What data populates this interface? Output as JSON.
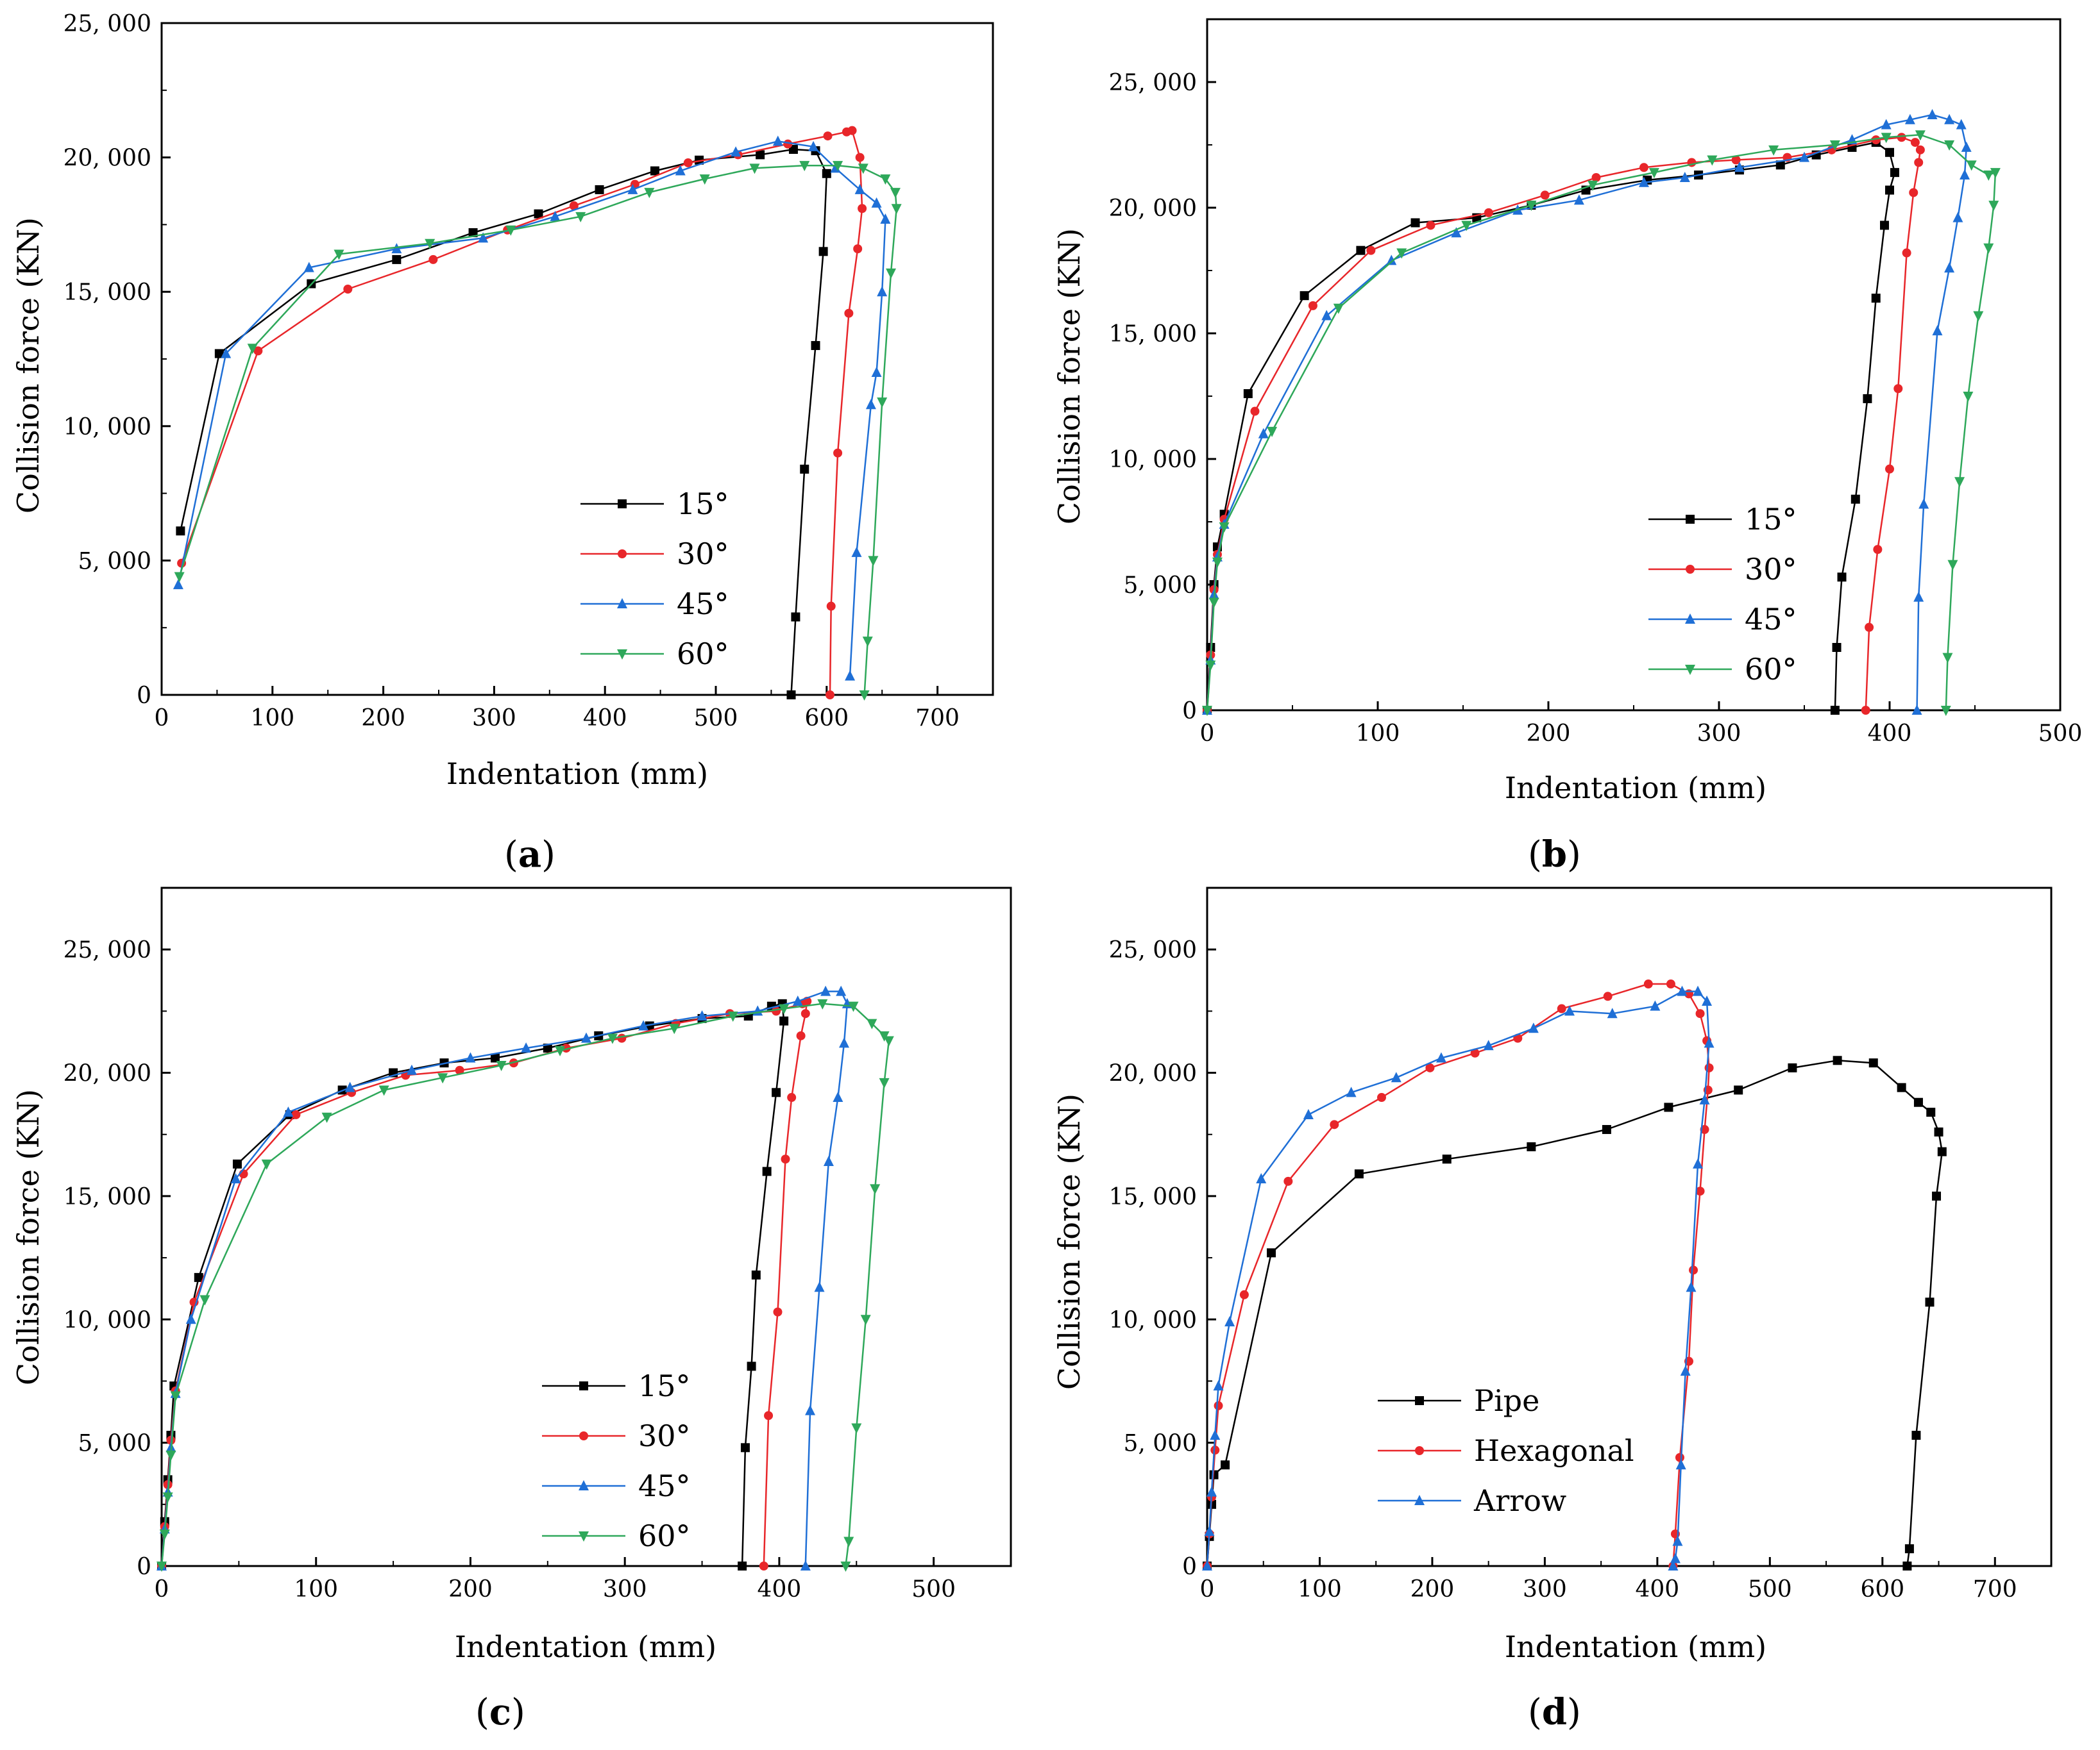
{
  "figure": {
    "panels": [
      "(a)",
      "(b)",
      "(c)",
      "(d)"
    ]
  },
  "colors": {
    "black": "#000000",
    "red": "#e8262a",
    "blue": "#1f6fd6",
    "green": "#2ea85a"
  },
  "chart_data": [
    {
      "type": "line",
      "panel_label": "a",
      "xlabel": "Indentation (mm)",
      "ylabel": "Collision force (KN)",
      "xlim": [
        0,
        750
      ],
      "ylim": [
        0,
        25000
      ],
      "xticks": [
        0,
        100,
        200,
        300,
        400,
        500,
        600,
        700
      ],
      "yticks": [
        0,
        5000,
        10000,
        15000,
        20000,
        25000
      ],
      "ytick_labels": [
        "0",
        "5, 000",
        "10, 000",
        "15, 000",
        "20, 000",
        "25, 000"
      ],
      "legend_position": "bottom-center",
      "series": [
        {
          "name": "15°",
          "color": "#000000",
          "marker": "square",
          "x": [
            17,
            52,
            135,
            212,
            281,
            340,
            395,
            445,
            485,
            540,
            570,
            590,
            600,
            597,
            590,
            580,
            572,
            568
          ],
          "y": [
            6100,
            12700,
            15300,
            16200,
            17200,
            17900,
            18800,
            19500,
            19900,
            20100,
            20300,
            20250,
            19400,
            16500,
            13000,
            8400,
            2900,
            0
          ]
        },
        {
          "name": "30°",
          "color": "#e8262a",
          "marker": "circle",
          "x": [
            18,
            87,
            168,
            245,
            312,
            372,
            427,
            475,
            520,
            565,
            601,
            618,
            623,
            630,
            632,
            628,
            620,
            610,
            604,
            603
          ],
          "y": [
            4900,
            12800,
            15100,
            16200,
            17300,
            18200,
            19000,
            19800,
            20100,
            20500,
            20800,
            20950,
            21000,
            20000,
            18100,
            16600,
            14200,
            9000,
            3300,
            0
          ]
        },
        {
          "name": "45°",
          "color": "#1f6fd6",
          "marker": "triangle-up",
          "x": [
            15,
            58,
            133,
            212,
            290,
            355,
            425,
            468,
            518,
            556,
            588,
            608,
            630,
            645,
            653,
            650,
            645,
            640,
            627,
            621
          ],
          "y": [
            4100,
            12700,
            15900,
            16600,
            17000,
            17800,
            18800,
            19500,
            20200,
            20600,
            20400,
            19600,
            18800,
            18300,
            17700,
            15000,
            12000,
            10800,
            5300,
            700
          ]
        },
        {
          "name": "60°",
          "color": "#2ea85a",
          "marker": "triangle-down",
          "x": [
            16,
            82,
            160,
            242,
            315,
            378,
            440,
            490,
            535,
            580,
            610,
            633,
            653,
            662,
            663,
            658,
            650,
            642,
            637,
            634
          ],
          "y": [
            4400,
            12900,
            16400,
            16800,
            17300,
            17800,
            18700,
            19200,
            19600,
            19700,
            19700,
            19600,
            19200,
            18700,
            18100,
            15700,
            10900,
            5000,
            2000,
            0
          ]
        }
      ]
    },
    {
      "type": "line",
      "panel_label": "b",
      "xlabel": "Indentation (mm)",
      "ylabel": "Collision force (KN)",
      "xlim": [
        0,
        500
      ],
      "ylim": [
        0,
        27500
      ],
      "xticks": [
        0,
        100,
        200,
        300,
        400,
        500
      ],
      "yticks": [
        0,
        5000,
        10000,
        15000,
        20000,
        25000
      ],
      "ytick_labels": [
        "0",
        "5, 000",
        "10, 000",
        "15, 000",
        "20, 000",
        "25, 000"
      ],
      "legend_position": "bottom-right",
      "series": [
        {
          "name": "15°",
          "color": "#000000",
          "marker": "square",
          "x": [
            0,
            2,
            4,
            6,
            10,
            24,
            57,
            90,
            122,
            158,
            190,
            222,
            258,
            288,
            312,
            336,
            357,
            378,
            392,
            400,
            403,
            400,
            397,
            392,
            387,
            380,
            372,
            369,
            368
          ],
          "y": [
            0,
            2500,
            5000,
            6500,
            7800,
            12600,
            16500,
            18300,
            19400,
            19600,
            20100,
            20700,
            21100,
            21300,
            21500,
            21700,
            22100,
            22400,
            22600,
            22200,
            21400,
            20700,
            19300,
            16400,
            12400,
            8400,
            5300,
            2500,
            0
          ]
        },
        {
          "name": "30°",
          "color": "#e8262a",
          "marker": "circle",
          "x": [
            0,
            2,
            4,
            6,
            10,
            28,
            62,
            96,
            131,
            165,
            198,
            228,
            256,
            284,
            310,
            340,
            366,
            392,
            407,
            415,
            418,
            417,
            414,
            410,
            405,
            400,
            393,
            388,
            386
          ],
          "y": [
            0,
            2200,
            4800,
            6200,
            7600,
            11900,
            16100,
            18300,
            19300,
            19800,
            20500,
            21200,
            21600,
            21800,
            21900,
            22000,
            22300,
            22700,
            22800,
            22600,
            22300,
            21800,
            20600,
            18200,
            12800,
            9600,
            6400,
            3300,
            0
          ]
        },
        {
          "name": "45°",
          "color": "#1f6fd6",
          "marker": "triangle-up",
          "x": [
            0,
            2,
            4,
            6,
            10,
            33,
            70,
            108,
            146,
            182,
            218,
            256,
            280,
            312,
            350,
            378,
            398,
            412,
            425,
            435,
            442,
            445,
            444,
            440,
            435,
            428,
            420,
            417,
            416
          ],
          "y": [
            0,
            2000,
            4600,
            6100,
            7400,
            11000,
            15700,
            17900,
            19000,
            19900,
            20300,
            21000,
            21200,
            21600,
            22000,
            22700,
            23300,
            23500,
            23700,
            23500,
            23300,
            22400,
            21300,
            19600,
            17600,
            15100,
            8200,
            4500,
            0
          ]
        },
        {
          "name": "60°",
          "color": "#2ea85a",
          "marker": "triangle-down",
          "x": [
            0,
            2,
            4,
            6,
            10,
            38,
            77,
            114,
            152,
            190,
            226,
            262,
            296,
            332,
            368,
            398,
            418,
            435,
            448,
            458,
            462,
            461,
            458,
            452,
            446,
            441,
            437,
            434,
            433
          ],
          "y": [
            0,
            1800,
            4300,
            5900,
            7300,
            11100,
            16000,
            18200,
            19300,
            20100,
            20900,
            21400,
            21900,
            22300,
            22500,
            22800,
            22900,
            22500,
            21700,
            21300,
            21400,
            20100,
            18400,
            15700,
            12500,
            9100,
            5800,
            2100,
            0
          ]
        }
      ]
    },
    {
      "type": "line",
      "panel_label": "c",
      "xlabel": "Indentation (mm)",
      "ylabel": "Collision force (KN)",
      "xlim": [
        0,
        550
      ],
      "ylim": [
        0,
        27500
      ],
      "xticks": [
        0,
        100,
        200,
        300,
        400,
        500
      ],
      "yticks": [
        0,
        5000,
        10000,
        15000,
        20000,
        25000
      ],
      "ytick_labels": [
        "0",
        "5, 000",
        "10, 000",
        "15, 000",
        "20, 000",
        "25, 000"
      ],
      "legend_position": "bottom-center",
      "series": [
        {
          "name": "15°",
          "color": "#000000",
          "marker": "square",
          "x": [
            0,
            2,
            4,
            6,
            8,
            24,
            49,
            83,
            117,
            150,
            183,
            216,
            250,
            283,
            316,
            350,
            380,
            395,
            402,
            403,
            398,
            392,
            385,
            382,
            378,
            376
          ],
          "y": [
            0,
            1800,
            3500,
            5300,
            7300,
            11700,
            16300,
            18300,
            19300,
            20000,
            20400,
            20600,
            21000,
            21500,
            21900,
            22200,
            22300,
            22700,
            22800,
            22100,
            19200,
            16000,
            11800,
            8100,
            4800,
            0
          ]
        },
        {
          "name": "30°",
          "color": "#e8262a",
          "marker": "circle",
          "x": [
            0,
            2,
            4,
            6,
            9,
            21,
            53,
            87,
            123,
            158,
            193,
            228,
            262,
            298,
            333,
            368,
            398,
            415,
            418,
            417,
            414,
            408,
            404,
            399,
            393,
            390
          ],
          "y": [
            0,
            1600,
            3300,
            5100,
            7100,
            10700,
            15900,
            18300,
            19200,
            19900,
            20100,
            20400,
            21000,
            21400,
            22000,
            22400,
            22500,
            22800,
            22900,
            22400,
            21500,
            19000,
            16500,
            10300,
            6100,
            0
          ]
        },
        {
          "name": "45°",
          "color": "#1f6fd6",
          "marker": "triangle-up",
          "x": [
            0,
            2,
            4,
            6,
            9,
            19,
            48,
            82,
            122,
            162,
            200,
            236,
            275,
            312,
            350,
            386,
            412,
            430,
            440,
            444,
            442,
            438,
            432,
            426,
            420,
            417
          ],
          "y": [
            0,
            1500,
            3000,
            4800,
            7000,
            10000,
            15700,
            18400,
            19400,
            20100,
            20600,
            21000,
            21400,
            21900,
            22300,
            22500,
            22900,
            23300,
            23300,
            22800,
            21200,
            19000,
            16400,
            11300,
            6300,
            0
          ]
        },
        {
          "name": "60°",
          "color": "#2ea85a",
          "marker": "triangle-down",
          "x": [
            0,
            2,
            4,
            6,
            9,
            28,
            68,
            107,
            144,
            182,
            220,
            258,
            292,
            332,
            370,
            403,
            428,
            448,
            460,
            468,
            471,
            468,
            462,
            456,
            450,
            445,
            443
          ],
          "y": [
            0,
            1300,
            2800,
            4500,
            6900,
            10800,
            16300,
            18200,
            19300,
            19800,
            20300,
            20900,
            21400,
            21800,
            22300,
            22600,
            22800,
            22700,
            22000,
            21500,
            21300,
            19600,
            15300,
            10000,
            5600,
            1000,
            0
          ]
        }
      ]
    },
    {
      "type": "line",
      "panel_label": "d",
      "xlabel": "Indentation (mm)",
      "ylabel": "Collision force (KN)",
      "xlim": [
        0,
        750
      ],
      "ylim": [
        0,
        27500
      ],
      "xticks": [
        0,
        100,
        200,
        300,
        400,
        500,
        600,
        700
      ],
      "yticks": [
        0,
        5000,
        10000,
        15000,
        20000,
        25000
      ],
      "ytick_labels": [
        "0",
        "5, 000",
        "10, 000",
        "15, 000",
        "20, 000",
        "25, 000"
      ],
      "legend_position": "bottom-left",
      "series": [
        {
          "name": "Pipe",
          "color": "#000000",
          "marker": "square",
          "x": [
            0,
            2,
            4,
            6,
            16,
            57,
            135,
            213,
            288,
            355,
            410,
            472,
            520,
            560,
            592,
            617,
            632,
            643,
            650,
            653,
            648,
            642,
            630,
            624,
            622
          ],
          "y": [
            0,
            1200,
            2500,
            3700,
            4100,
            12700,
            15900,
            16500,
            17000,
            17700,
            18600,
            19300,
            20200,
            20500,
            20400,
            19400,
            18800,
            18400,
            17600,
            16800,
            15000,
            10700,
            5300,
            700,
            0
          ]
        },
        {
          "name": "Hexagonal",
          "color": "#e8262a",
          "marker": "circle",
          "x": [
            0,
            2,
            4,
            7,
            10,
            33,
            72,
            113,
            155,
            198,
            238,
            276,
            315,
            356,
            392,
            412,
            428,
            438,
            444,
            446,
            445,
            442,
            438,
            432,
            428,
            420,
            416,
            414
          ],
          "y": [
            0,
            1300,
            2800,
            4700,
            6500,
            11000,
            15600,
            17900,
            19000,
            20200,
            20800,
            21400,
            22600,
            23100,
            23600,
            23600,
            23200,
            22400,
            21300,
            20200,
            19300,
            17700,
            15200,
            12000,
            8300,
            4400,
            1300,
            0
          ]
        },
        {
          "name": "Arrow",
          "color": "#1f6fd6",
          "marker": "triangle-up",
          "x": [
            0,
            2,
            4,
            7,
            10,
            20,
            48,
            90,
            128,
            168,
            208,
            250,
            290,
            322,
            360,
            398,
            422,
            436,
            444,
            446,
            442,
            436,
            430,
            425,
            421,
            418,
            416,
            414
          ],
          "y": [
            0,
            1400,
            3000,
            5300,
            7300,
            9900,
            15700,
            18300,
            19200,
            19800,
            20600,
            21100,
            21800,
            22500,
            22400,
            22700,
            23300,
            23300,
            22900,
            21200,
            18900,
            16300,
            11300,
            7900,
            4100,
            1000,
            300,
            0
          ]
        }
      ]
    }
  ]
}
